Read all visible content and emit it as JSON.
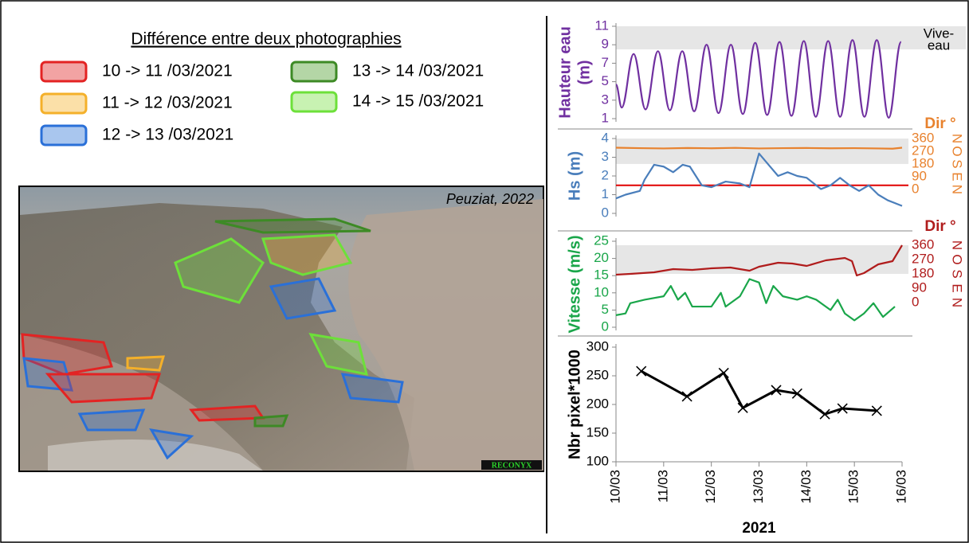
{
  "legend": {
    "title": "Différence entre deux photographies",
    "items": [
      {
        "label": "10 -> 11 /03/2021",
        "color": "#e32323",
        "fill": "#f2a3a3"
      },
      {
        "label": "11 -> 12 /03/2021",
        "color": "#f4b02a",
        "fill": "#fbe0a8"
      },
      {
        "label": "12 -> 13 /03/2021",
        "color": "#2a70d8",
        "fill": "#a9c6ee"
      },
      {
        "label": "13 -> 14 /03/2021",
        "color": "#3d8a25",
        "fill": "#b4d6a6"
      },
      {
        "label": "14 -> 15 /03/2021",
        "color": "#6de03a",
        "fill": "#c8f2b2"
      }
    ]
  },
  "photo": {
    "caption": "Peuziat, 2022",
    "brand": "RECONYX"
  },
  "chart_data": [
    {
      "type": "line",
      "ylabel": [
        "Hauteur eau",
        "(m)"
      ],
      "ylabel_color": "#7030a0",
      "xlim": [
        0,
        6
      ],
      "ylim": [
        1,
        11
      ],
      "yticks": [
        1,
        3,
        5,
        7,
        9,
        11
      ],
      "tick_color": "#7030a0",
      "band": [
        8.5,
        11
      ],
      "band_label": [
        "Vive-",
        "eau"
      ],
      "series": [
        {
          "color": "#7030a0",
          "smooth": true,
          "x": [
            0,
            0.12,
            0.37,
            0.62,
            0.88,
            1.13,
            1.39,
            1.64,
            1.9,
            2.15,
            2.41,
            2.66,
            2.92,
            3.17,
            3.43,
            3.68,
            3.94,
            4.19,
            4.45,
            4.7,
            4.96,
            5.21,
            5.47,
            5.72,
            5.98
          ],
          "values": [
            4.7,
            2.2,
            8.0,
            2.0,
            8.3,
            1.9,
            8.3,
            1.8,
            9.0,
            1.6,
            9.0,
            1.5,
            9.2,
            1.4,
            9.3,
            1.3,
            9.4,
            1.2,
            9.4,
            1.2,
            9.5,
            1.2,
            9.5,
            1.1,
            9.3
          ]
        }
      ]
    },
    {
      "type": "line",
      "ylabel": [
        "Hs (m)"
      ],
      "ylabel_color": "#4a7ebb",
      "xlim": [
        0,
        6
      ],
      "ylim": [
        0,
        4
      ],
      "yticks": [
        0,
        1,
        2,
        3,
        4
      ],
      "tick_color": "#4a7ebb",
      "y2label": "Dir °",
      "y2_color": "#e8822e",
      "y2lim": [
        -170,
        360
      ],
      "y2ticks": [
        0,
        90,
        180,
        270,
        360
      ],
      "compass": [
        "N",
        "E",
        "S",
        "O",
        "N"
      ],
      "band_y2": [
        180,
        360
      ],
      "threshold": 1.5,
      "threshold_color": "#e00000",
      "series": [
        {
          "color": "#4a7ebb",
          "x": [
            0,
            0.2,
            0.5,
            0.6,
            0.8,
            1.0,
            1.2,
            1.4,
            1.55,
            1.8,
            2.0,
            2.3,
            2.6,
            2.8,
            3.0,
            3.2,
            3.4,
            3.6,
            3.8,
            4.0,
            4.3,
            4.5,
            4.7,
            4.9,
            5.1,
            5.3,
            5.5,
            5.7,
            6.0
          ],
          "values": [
            0.8,
            1.0,
            1.2,
            1.8,
            2.6,
            2.5,
            2.2,
            2.6,
            2.5,
            1.5,
            1.4,
            1.7,
            1.6,
            1.4,
            3.2,
            2.6,
            2.0,
            2.2,
            2.0,
            1.9,
            1.3,
            1.5,
            1.9,
            1.5,
            1.2,
            1.5,
            1.0,
            0.7,
            0.4
          ]
        },
        {
          "color": "#e8822e",
          "axis": "y2",
          "x": [
            0,
            0.5,
            1,
            1.5,
            2,
            2.5,
            3,
            3.5,
            4,
            4.5,
            5,
            5.5,
            5.8,
            6
          ],
          "values": [
            295,
            292,
            290,
            293,
            291,
            294,
            290,
            292,
            293,
            291,
            292,
            290,
            288,
            295
          ]
        }
      ]
    },
    {
      "type": "line",
      "ylabel": [
        "Vitesse (m/s)"
      ],
      "ylabel_color": "#1aa64a",
      "xlim": [
        0,
        6
      ],
      "ylim": [
        0,
        25
      ],
      "yticks": [
        0,
        5,
        10,
        15,
        20,
        25
      ],
      "tick_color": "#1aa64a",
      "y2label": "Dir °",
      "y2_color": "#b01c1c",
      "y2lim": [
        -155,
        385
      ],
      "y2ticks": [
        0,
        90,
        180,
        270,
        360
      ],
      "compass": [
        "N",
        "E",
        "S",
        "O",
        "N"
      ],
      "band_y2": [
        180,
        360
      ],
      "series": [
        {
          "color": "#1aa64a",
          "x": [
            0,
            0.2,
            0.3,
            0.6,
            1.0,
            1.15,
            1.3,
            1.45,
            1.6,
            2.0,
            2.2,
            2.3,
            2.6,
            2.8,
            3.0,
            3.15,
            3.3,
            3.5,
            3.8,
            4.0,
            4.2,
            4.5,
            4.65,
            4.8,
            5.0,
            5.2,
            5.4,
            5.6,
            5.85
          ],
          "values": [
            3.5,
            4,
            7,
            8,
            9,
            12,
            8,
            10,
            6,
            6,
            10,
            6,
            9,
            14,
            13,
            7,
            12,
            9,
            8,
            9,
            8,
            5,
            8,
            4,
            2,
            4,
            7,
            3,
            6
          ]
        },
        {
          "color": "#b01c1c",
          "axis": "y2",
          "x": [
            0,
            0.3,
            0.8,
            1.2,
            1.6,
            2.0,
            2.4,
            2.8,
            3.0,
            3.4,
            3.7,
            4.0,
            4.4,
            4.8,
            4.95,
            5.05,
            5.2,
            5.5,
            5.8,
            6.0
          ],
          "values": [
            175,
            180,
            190,
            210,
            205,
            215,
            220,
            200,
            225,
            250,
            245,
            230,
            265,
            280,
            260,
            170,
            185,
            240,
            260,
            360
          ]
        }
      ]
    },
    {
      "type": "line",
      "ylabel": [
        "Nbr pixel*1000"
      ],
      "ylabel_color": "#000000",
      "xlim": [
        0,
        6
      ],
      "ylim": [
        100,
        300
      ],
      "yticks": [
        100,
        150,
        200,
        250,
        300
      ],
      "tick_color": "#000000",
      "xticks": [
        {
          "value": 0,
          "label": "10/03"
        },
        {
          "value": 1,
          "label": "11/03"
        },
        {
          "value": 2,
          "label": "12/03"
        },
        {
          "value": 3,
          "label": "13/03"
        },
        {
          "value": 4,
          "label": "14/03"
        },
        {
          "value": 5,
          "label": "15/03"
        },
        {
          "value": 6,
          "label": "16/03"
        }
      ],
      "xlabel": "2021",
      "series": [
        {
          "color": "#000000",
          "marker": "x",
          "x": [
            0.53,
            1.49,
            2.26,
            2.66,
            3.36,
            3.8,
            4.38,
            4.75,
            5.47
          ],
          "values": [
            258,
            214,
            255,
            194,
            225,
            219,
            183,
            193,
            189
          ]
        }
      ]
    }
  ]
}
